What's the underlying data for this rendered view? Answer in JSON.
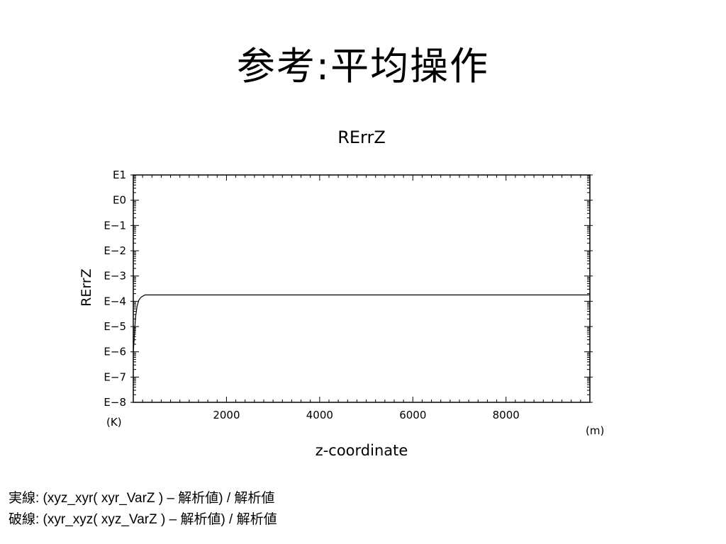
{
  "slide": {
    "title": "参考:平均操作",
    "caption_solid": "実線: (xyz_xyr( xyr_VarZ ) – 解析値) / 解析値",
    "caption_dashed": "破線: (xyr_xyz( xyz_VarZ ) – 解析値) / 解析値"
  },
  "chart_data": {
    "type": "line",
    "title": "RErrZ",
    "xlabel": "z-coordinate",
    "ylabel": "RErrZ",
    "x_unit": "(m)",
    "y_unit": "(K)",
    "xlim": [
      0,
      9800
    ],
    "ylim": [
      -8,
      1
    ],
    "y_scale": "log",
    "x_ticks": [
      2000,
      4000,
      6000,
      8000
    ],
    "x_tick_labels": [
      "2000",
      "4000",
      "6000",
      "8000"
    ],
    "y_ticks": [
      1,
      0,
      -1,
      -2,
      -3,
      -4,
      -5,
      -6,
      -7,
      -8
    ],
    "y_tick_labels": [
      "E1",
      "E0",
      "E−1",
      "E−2",
      "E−3",
      "E−4",
      "E−5",
      "E−6",
      "E−7",
      "E−8"
    ],
    "grid": false,
    "series": [
      {
        "style": "solid",
        "color": "#000000",
        "x": [
          0,
          15,
          30,
          50,
          80,
          120,
          160,
          200,
          250,
          9800
        ],
        "y": [
          -6.0,
          -5.6,
          -5.1,
          -4.6,
          -4.2,
          -3.95,
          -3.85,
          -3.8,
          -3.75,
          -3.75
        ]
      }
    ]
  }
}
